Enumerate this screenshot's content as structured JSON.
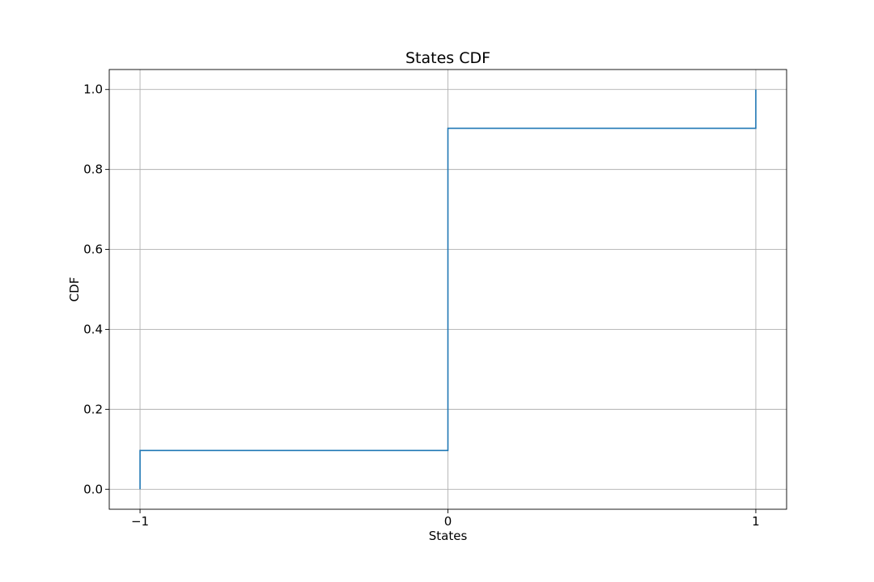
{
  "chart_data": {
    "type": "line",
    "title": "States CDF",
    "xlabel": "States",
    "ylabel": "CDF",
    "xlim": [
      -1.1,
      1.1
    ],
    "ylim": [
      -0.05,
      1.05
    ],
    "x_ticks": [
      -1,
      0,
      1
    ],
    "x_tick_labels": [
      "−1",
      "0",
      "1"
    ],
    "y_ticks": [
      0.0,
      0.2,
      0.4,
      0.6,
      0.8,
      1.0
    ],
    "y_tick_labels": [
      "0.0",
      "0.2",
      "0.4",
      "0.6",
      "0.8",
      "1.0"
    ],
    "grid": true,
    "step": "post",
    "series": [
      {
        "x": [
          -1,
          -1,
          0,
          0,
          1,
          1
        ],
        "y": [
          0.0,
          0.097,
          0.097,
          0.903,
          0.903,
          1.0
        ],
        "color": "#1f77b4"
      }
    ]
  }
}
